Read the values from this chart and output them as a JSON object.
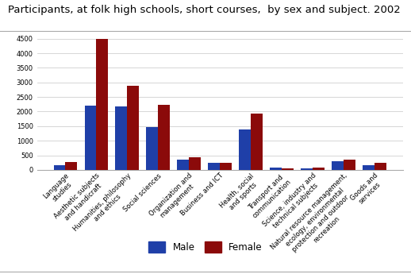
{
  "title": "Participants, at folk high schools, short courses,  by sex and subject. 2002",
  "categories": [
    "Language\nstudies",
    "Aesthetic subjects\nand handicraft",
    "Humanities, philosophy\nand ethics",
    "Social sciences",
    "Organization and\nmanagement",
    "Business and ICT",
    "Health, social\nand sports",
    "Transport and\ncommunication",
    "Science, industry and\ntechnical subjects",
    "Natural resource management,\necology, environmental\nprotection and outdoor\nrecreation",
    "Goods and\nservices"
  ],
  "male": [
    170,
    2200,
    2170,
    1480,
    350,
    230,
    1380,
    80,
    55,
    310,
    150
  ],
  "female": [
    280,
    4490,
    2880,
    2240,
    420,
    250,
    1940,
    60,
    75,
    360,
    235
  ],
  "male_color": "#1f3fa8",
  "female_color": "#8b0a0a",
  "ylim": [
    0,
    4700
  ],
  "yticks": [
    0,
    500,
    1000,
    1500,
    2000,
    2500,
    3000,
    3500,
    4000,
    4500
  ],
  "bar_width": 0.38,
  "legend_labels": [
    "Male",
    "Female"
  ],
  "background_color": "#ffffff",
  "grid_color": "#d0d0d0",
  "title_fontsize": 9.5,
  "tick_fontsize": 6.0,
  "legend_fontsize": 8.5
}
